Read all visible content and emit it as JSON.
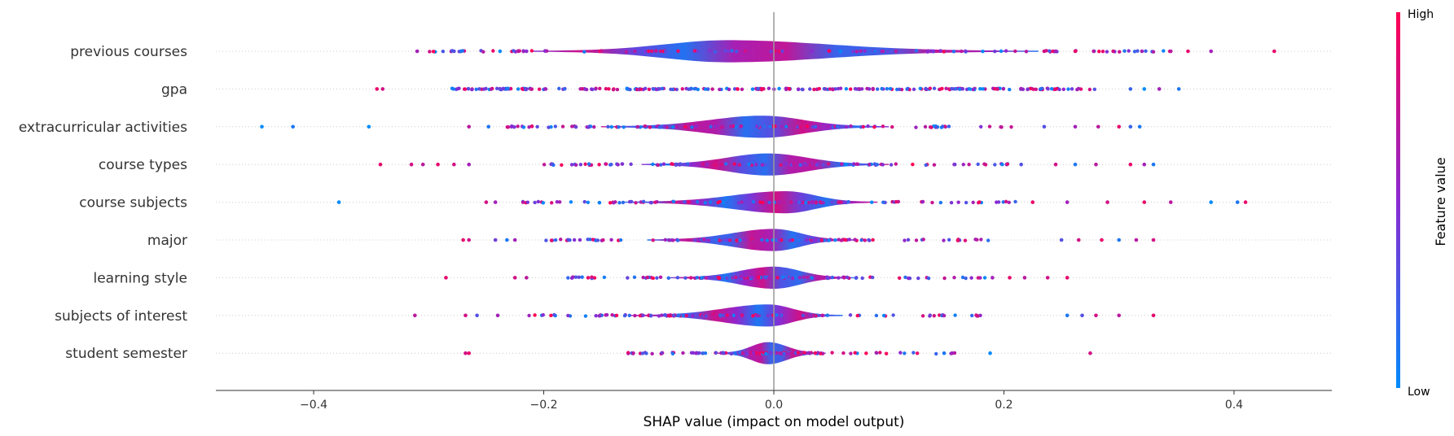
{
  "chart_data": {
    "type": "scatter",
    "subtype": "shap-violin-summary",
    "xlabel": "SHAP value (impact on model output)",
    "xlim": [
      -0.485,
      0.485
    ],
    "xticks": [
      -0.4,
      -0.2,
      0.0,
      0.2,
      0.4
    ],
    "xtick_labels": [
      "−0.4",
      "−0.2",
      "0.0",
      "0.2",
      "0.4"
    ],
    "zero_line": 0.0,
    "grid": false,
    "colorbar": {
      "title": "Feature value",
      "high_label": "High",
      "low_label": "Low",
      "low_color": "#008bfb",
      "high_color": "#ff0052",
      "mid_color": "#8c29d2"
    },
    "features": [
      {
        "name": "previous courses",
        "violin_range": [
          -0.21,
          0.23
        ],
        "peak": -0.04,
        "tail_points": [
          {
            "x": -0.31,
            "v": 0.6
          },
          {
            "x": -0.278,
            "v": 0.3
          },
          {
            "x": -0.272,
            "v": 0.1
          },
          {
            "x": -0.238,
            "v": 0.0
          },
          {
            "x": -0.222,
            "v": 0.7
          },
          {
            "x": -0.215,
            "v": 0.5
          },
          {
            "x": 0.235,
            "v": 0.8
          },
          {
            "x": 0.245,
            "v": 0.6
          },
          {
            "x": 0.262,
            "v": 0.9
          },
          {
            "x": 0.278,
            "v": 0.7
          },
          {
            "x": 0.295,
            "v": 0.8
          },
          {
            "x": 0.32,
            "v": 0.6
          },
          {
            "x": 0.345,
            "v": 0.7
          },
          {
            "x": 0.36,
            "v": 0.9
          },
          {
            "x": 0.38,
            "v": 0.6
          },
          {
            "x": 0.435,
            "v": 0.9
          }
        ]
      },
      {
        "name": "gpa",
        "violin_range": null,
        "peak": 0.0,
        "tail_points": [
          {
            "x": -0.345,
            "v": 0.9
          },
          {
            "x": -0.34,
            "v": 0.8
          },
          {
            "x": 0.31,
            "v": 0.2
          },
          {
            "x": 0.322,
            "v": 0.0
          },
          {
            "x": 0.335,
            "v": 0.6
          },
          {
            "x": 0.352,
            "v": 0.1
          }
        ]
      },
      {
        "name": "extracurricular activities",
        "violin_range": [
          -0.15,
          0.1
        ],
        "peak": -0.01,
        "tail_points": [
          {
            "x": -0.445,
            "v": 0.0
          },
          {
            "x": -0.418,
            "v": 0.1
          },
          {
            "x": -0.352,
            "v": 0.0
          },
          {
            "x": -0.265,
            "v": 0.7
          },
          {
            "x": -0.248,
            "v": 0.1
          },
          {
            "x": -0.228,
            "v": 0.5
          },
          {
            "x": 0.235,
            "v": 0.3
          },
          {
            "x": 0.262,
            "v": 0.6
          },
          {
            "x": 0.282,
            "v": 0.7
          },
          {
            "x": 0.3,
            "v": 0.9
          },
          {
            "x": 0.31,
            "v": 0.2
          },
          {
            "x": 0.318,
            "v": 0.1
          }
        ]
      },
      {
        "name": "course types",
        "violin_range": [
          -0.115,
          0.1
        ],
        "peak": -0.005,
        "tail_points": [
          {
            "x": -0.342,
            "v": 0.9
          },
          {
            "x": -0.315,
            "v": 0.8
          },
          {
            "x": -0.305,
            "v": 0.7
          },
          {
            "x": -0.292,
            "v": 0.9
          },
          {
            "x": -0.278,
            "v": 0.8
          },
          {
            "x": -0.265,
            "v": 0.6
          },
          {
            "x": 0.215,
            "v": 0.3
          },
          {
            "x": 0.245,
            "v": 0.8
          },
          {
            "x": 0.262,
            "v": 0.1
          },
          {
            "x": 0.28,
            "v": 0.7
          },
          {
            "x": 0.31,
            "v": 0.9
          },
          {
            "x": 0.322,
            "v": 0.6
          },
          {
            "x": 0.33,
            "v": 0.1
          }
        ]
      },
      {
        "name": "course subjects",
        "violin_range": [
          -0.13,
          0.09
        ],
        "peak": 0.01,
        "tail_points": [
          {
            "x": -0.378,
            "v": 0.0
          },
          {
            "x": -0.25,
            "v": 0.8
          },
          {
            "x": -0.242,
            "v": 0.6
          },
          {
            "x": -0.218,
            "v": 0.7
          },
          {
            "x": 0.225,
            "v": 0.9
          },
          {
            "x": 0.255,
            "v": 0.6
          },
          {
            "x": 0.29,
            "v": 0.8
          },
          {
            "x": 0.322,
            "v": 0.9
          },
          {
            "x": 0.345,
            "v": 0.7
          },
          {
            "x": 0.38,
            "v": 0.0
          },
          {
            "x": 0.403,
            "v": 0.1
          },
          {
            "x": 0.41,
            "v": 0.9
          }
        ]
      },
      {
        "name": "major",
        "violin_range": [
          -0.11,
          0.07
        ],
        "peak": 0.0,
        "tail_points": [
          {
            "x": -0.27,
            "v": 0.9
          },
          {
            "x": -0.265,
            "v": 0.8
          },
          {
            "x": -0.242,
            "v": 0.4
          },
          {
            "x": -0.232,
            "v": 0.1
          },
          {
            "x": -0.225,
            "v": 0.6
          },
          {
            "x": 0.25,
            "v": 0.3
          },
          {
            "x": 0.265,
            "v": 0.8
          },
          {
            "x": 0.285,
            "v": 0.9
          },
          {
            "x": 0.3,
            "v": 0.1
          },
          {
            "x": 0.315,
            "v": 0.7
          },
          {
            "x": 0.33,
            "v": 0.8
          }
        ]
      },
      {
        "name": "learning style",
        "violin_range": [
          -0.09,
          0.07
        ],
        "peak": 0.0,
        "tail_points": [
          {
            "x": -0.285,
            "v": 0.9
          },
          {
            "x": -0.225,
            "v": 0.8
          },
          {
            "x": -0.215,
            "v": 0.7
          },
          {
            "x": 0.19,
            "v": 0.6
          },
          {
            "x": 0.205,
            "v": 0.9
          },
          {
            "x": 0.218,
            "v": 0.7
          },
          {
            "x": 0.238,
            "v": 0.8
          },
          {
            "x": 0.255,
            "v": 0.9
          }
        ]
      },
      {
        "name": "subjects of interest",
        "violin_range": [
          -0.125,
          0.06
        ],
        "peak": -0.005,
        "tail_points": [
          {
            "x": -0.312,
            "v": 0.7
          },
          {
            "x": -0.268,
            "v": 0.8
          },
          {
            "x": -0.258,
            "v": 0.3
          },
          {
            "x": -0.24,
            "v": 0.6
          },
          {
            "x": 0.255,
            "v": 0.1
          },
          {
            "x": 0.268,
            "v": 0.3
          },
          {
            "x": 0.28,
            "v": 0.8
          },
          {
            "x": 0.3,
            "v": 0.7
          },
          {
            "x": 0.33,
            "v": 0.9
          }
        ]
      },
      {
        "name": "student semester",
        "violin_range": [
          -0.05,
          0.045
        ],
        "peak": -0.005,
        "tail_points": [
          {
            "x": -0.268,
            "v": 0.8
          },
          {
            "x": -0.265,
            "v": 0.9
          },
          {
            "x": 0.148,
            "v": 0.1
          },
          {
            "x": 0.155,
            "v": 0.6
          },
          {
            "x": 0.188,
            "v": 0.0
          },
          {
            "x": 0.275,
            "v": 0.8
          }
        ]
      }
    ]
  }
}
